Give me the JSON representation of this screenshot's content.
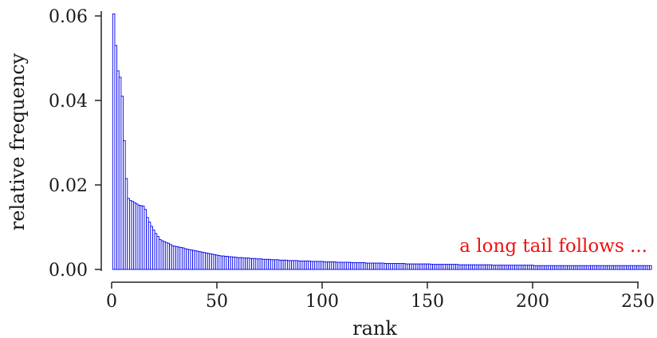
{
  "chart_data": {
    "type": "bar",
    "title": "",
    "xlabel": "rank",
    "ylabel": "relative frequency",
    "xlim": [
      1,
      256
    ],
    "ylim": [
      0,
      0.06
    ],
    "x_ticks": [
      {
        "value": 0,
        "label": "0"
      },
      {
        "value": 50,
        "label": "50"
      },
      {
        "value": 100,
        "label": "100"
      },
      {
        "value": 150,
        "label": "150"
      },
      {
        "value": 200,
        "label": "200"
      },
      {
        "value": 250,
        "label": "250"
      }
    ],
    "y_ticks": [
      {
        "value": 0,
        "label": "0.00"
      },
      {
        "value": 0.02,
        "label": "0.02"
      },
      {
        "value": 0.04,
        "label": "0.04"
      },
      {
        "value": 0.06,
        "label": "0.06"
      }
    ],
    "grid": false,
    "bar_color": "#0000ee",
    "annotation": {
      "text": "a long tail follows ...",
      "color": "#ee1111"
    },
    "values": [
      0.0605,
      0.053,
      0.047,
      0.0455,
      0.041,
      0.0305,
      0.0215,
      0.0168,
      0.0163,
      0.0161,
      0.0158,
      0.0155,
      0.0152,
      0.0151,
      0.015,
      0.0142,
      0.0123,
      0.0112,
      0.0102,
      0.0093,
      0.0085,
      0.0078,
      0.0071,
      0.0068,
      0.0066,
      0.0064,
      0.0062,
      0.0059,
      0.0056,
      0.0055,
      0.0054,
      0.0053,
      0.0052,
      0.0051,
      0.0049,
      0.0048,
      0.0047,
      0.0046,
      0.0045,
      0.0044,
      0.0043,
      0.0042,
      0.0041,
      0.004,
      0.0039,
      0.0038,
      0.0037,
      0.0036,
      0.0035,
      0.0034,
      0.0033,
      0.0032,
      0.0032,
      0.0031,
      0.0031,
      0.003,
      0.003,
      0.0029,
      0.0029,
      0.0028,
      0.0028,
      0.0028,
      0.0027,
      0.0027,
      0.0027,
      0.0026,
      0.0026,
      0.0026,
      0.0025,
      0.0025,
      0.0025,
      0.0024,
      0.0024,
      0.0024,
      0.0024,
      0.0023,
      0.0023,
      0.0023,
      0.0023,
      0.0022,
      0.0022,
      0.0022,
      0.0022,
      0.0021,
      0.0021,
      0.0021,
      0.0021,
      0.0021,
      0.002,
      0.002,
      0.002,
      0.002,
      0.002,
      0.002,
      0.0019,
      0.0019,
      0.0019,
      0.0019,
      0.0019,
      0.0019,
      0.0018,
      0.0018,
      0.0018,
      0.0018,
      0.0018,
      0.0018,
      0.0017,
      0.0017,
      0.0017,
      0.0017,
      0.0017,
      0.0017,
      0.0017,
      0.0016,
      0.0016,
      0.0016,
      0.0016,
      0.0016,
      0.0016,
      0.0016,
      0.0015,
      0.0015,
      0.0015,
      0.0015,
      0.0015,
      0.0015,
      0.0015,
      0.0015,
      0.0015,
      0.0014,
      0.0014,
      0.0014,
      0.0014,
      0.0014,
      0.0014,
      0.0014,
      0.0014,
      0.0014,
      0.0014,
      0.0013,
      0.0013,
      0.0013,
      0.0013,
      0.0013,
      0.0013,
      0.0013,
      0.0013,
      0.0013,
      0.0013,
      0.0013,
      0.0013,
      0.0012,
      0.0012,
      0.0012,
      0.0012,
      0.0012,
      0.0012,
      0.0012,
      0.0012,
      0.0012,
      0.0012,
      0.0012,
      0.0012,
      0.0012,
      0.0011,
      0.0011,
      0.0011,
      0.0011,
      0.0011,
      0.0011,
      0.0011,
      0.0011,
      0.0011,
      0.0011,
      0.0011,
      0.0011,
      0.0011,
      0.0011,
      0.0011,
      0.0011,
      0.001,
      0.001,
      0.001,
      0.001,
      0.001,
      0.001,
      0.001,
      0.001,
      0.001,
      0.001,
      0.001,
      0.001,
      0.001,
      0.001,
      0.001,
      0.001,
      0.001,
      0.001,
      0.001,
      0.001,
      0.0009,
      0.0009,
      0.0009,
      0.0009,
      0.0009,
      0.0009,
      0.0009,
      0.0009,
      0.0009,
      0.0009,
      0.0009,
      0.0009,
      0.0009,
      0.0009,
      0.0009,
      0.0009,
      0.0009,
      0.0009,
      0.0009,
      0.0009,
      0.0009,
      0.0009,
      0.0009,
      0.0009,
      0.0009,
      0.0009,
      0.0009,
      0.0009,
      0.0009,
      0.0009,
      0.0009,
      0.0009,
      0.0009,
      0.0009,
      0.0009,
      0.0009,
      0.0009,
      0.0009,
      0.0009,
      0.0009,
      0.0009,
      0.0009,
      0.0009,
      0.0009,
      0.0009,
      0.0009,
      0.0009,
      0.0009,
      0.0009,
      0.0009,
      0.0009,
      0.0009,
      0.0009,
      0.0009,
      0.0009,
      0.0009
    ]
  }
}
